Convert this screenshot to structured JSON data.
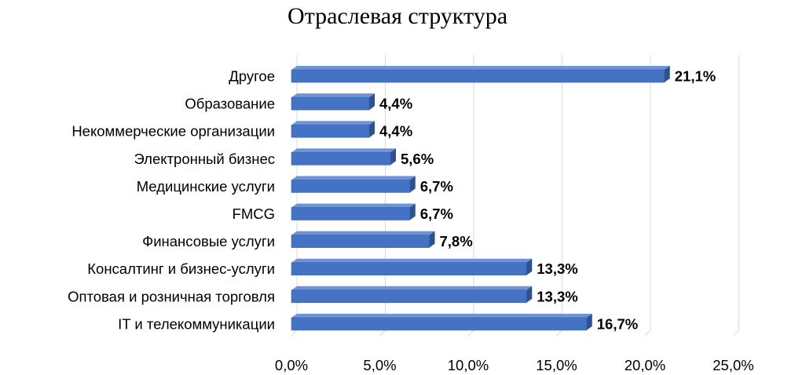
{
  "chart_data": {
    "type": "bar",
    "orientation": "horizontal",
    "title": "Отраслевая структура",
    "categories": [
      "Другое",
      "Образование",
      "Некоммерческие организации",
      "Электронный бизнес",
      "Медицинские услуги",
      "FMCG",
      "Финансовые услуги",
      "Консалтинг и бизнес-услуги",
      "Оптовая и розничная торговля",
      "IT и телекоммуникации"
    ],
    "values": [
      21.1,
      4.4,
      4.4,
      5.6,
      6.7,
      6.7,
      7.8,
      13.3,
      13.3,
      16.7
    ],
    "value_labels": [
      "21,1%",
      "4,4%",
      "4,4%",
      "5,6%",
      "6,7%",
      "6,7%",
      "7,8%",
      "13,3%",
      "13,3%",
      "16,7%"
    ],
    "x_ticks": [
      "0,0%",
      "5,0%",
      "10,0%",
      "15,0%",
      "20,0%",
      "25,0%"
    ],
    "xlim": [
      0,
      25
    ],
    "grid": true,
    "colors": {
      "bar_front": "#4472C4",
      "bar_top": "#6F94D6",
      "bar_side": "#2F528F",
      "grid": "#D9D9D9"
    }
  }
}
